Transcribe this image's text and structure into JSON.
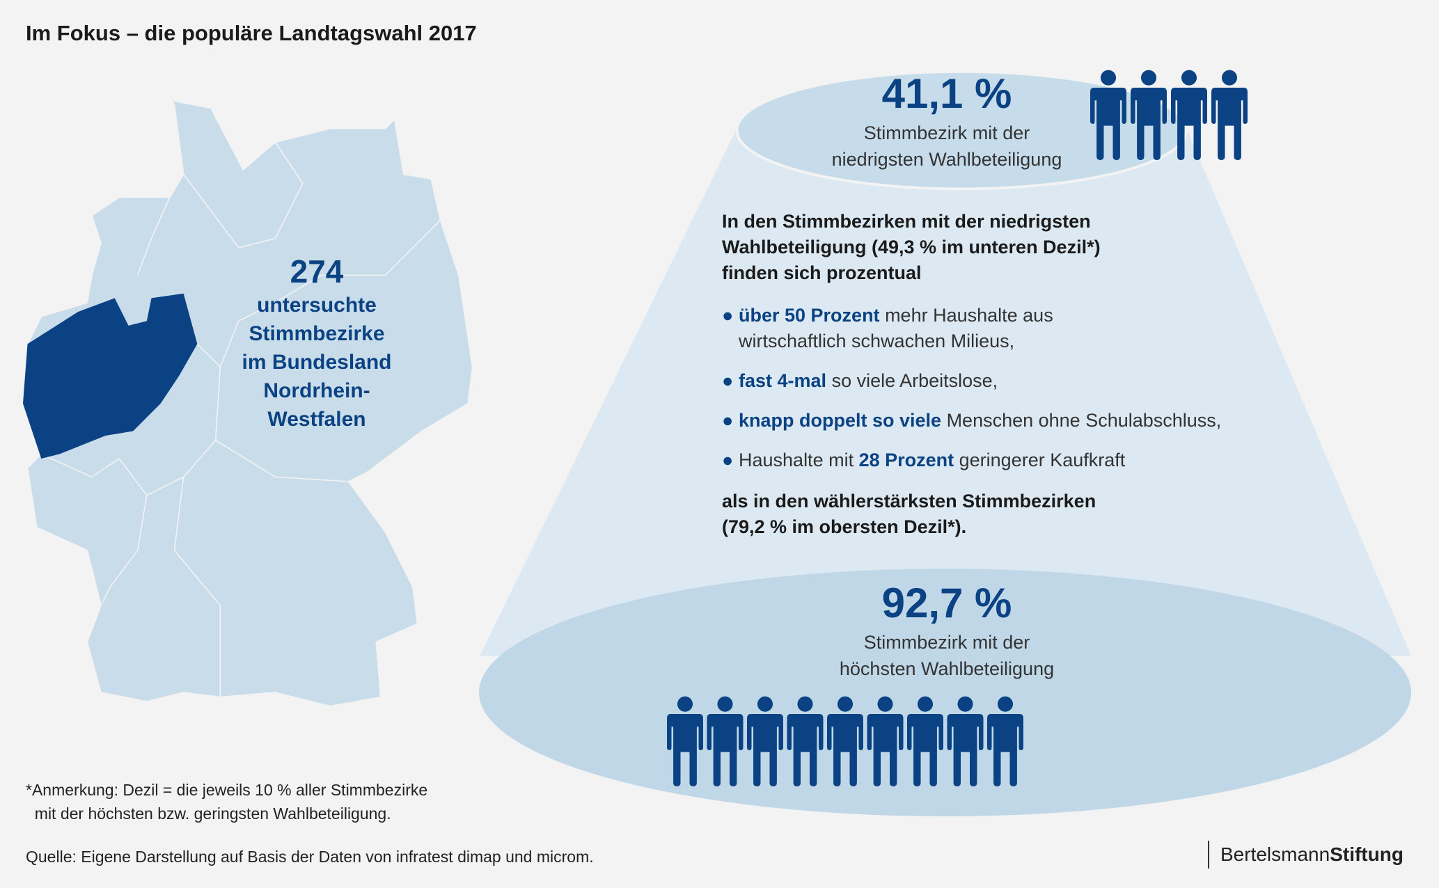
{
  "title": "Im Fokus – die populäre Landtagswahl 2017",
  "map": {
    "count": "274",
    "lines": [
      "untersuchte",
      "Stimmbezirke",
      "im Bundesland",
      "Nordrhein-",
      "Westfalen"
    ],
    "highlight_region": "Nordrhein-Westfalen"
  },
  "top": {
    "value": "41,1 %",
    "sub": [
      "Stimmbezirk mit der",
      "niedrigsten Wahlbeteiligung"
    ],
    "person_count": 4
  },
  "bottom": {
    "value": "92,7 %",
    "sub": [
      "Stimmbezirk mit der",
      "höchsten Wahlbeteiligung"
    ],
    "person_count": 9
  },
  "body": {
    "lead": [
      "In den Stimmbezirken mit der niedrigsten",
      "Wahlbeteiligung (49,3 % im unteren Dezil*)",
      "finden sich prozentual"
    ],
    "bullets": [
      {
        "pre": "",
        "hl": "über 50 Prozent",
        "post": " mehr Haushalte aus",
        "post2": "wirtschaftlich schwachen Milieus,"
      },
      {
        "pre": "",
        "hl": "fast 4-mal",
        "post": " so viele  Arbeitslose,"
      },
      {
        "pre": "",
        "hl": "knapp doppelt so viele",
        "post": " Menschen ohne Schulabschluss,"
      },
      {
        "pre": "Haushalte mit ",
        "hl": "28 Prozent",
        "post": " geringerer Kaufkraft"
      }
    ],
    "closing": [
      "als in den wählerstärksten Stimmbezirken",
      "(79,2 % im obersten Dezil*)."
    ]
  },
  "note": [
    "*Anmerkung: Dezil = die jeweils 10 % aller Stimmbezirke",
    "  mit der höchsten bzw. geringsten Wahlbeteiligung."
  ],
  "source": "Quelle: Eigene Darstellung auf Basis der Daten von infratest dimap und microm.",
  "logo": {
    "part1": "Bertelsmann",
    "part2": "Stiftung"
  },
  "colors": {
    "background": "#f3f3f3",
    "accent": "#0b4283",
    "map": "#c9dcea",
    "cone": "#dce9f2",
    "ellipse": "#bfd7e7"
  }
}
